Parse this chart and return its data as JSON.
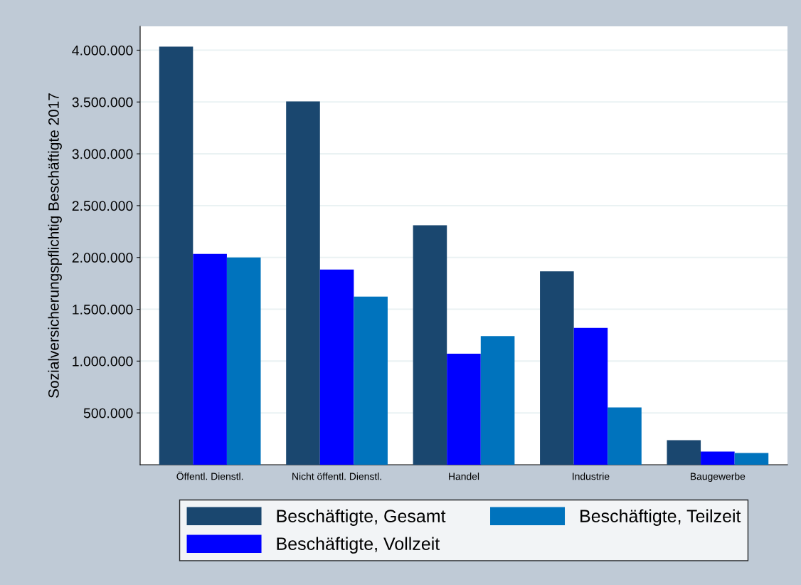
{
  "chart_data": {
    "type": "bar",
    "ylabel": "Sozialversicherungspflichtig Beschäftigte 2017",
    "categories": [
      "Öffentl. Dienstl.",
      "Nicht öffentl. Dienstl.",
      "Handel",
      "Industrie",
      "Baugewerbe"
    ],
    "series": [
      {
        "name": "Beschäftigte, Gesamt",
        "color": "#1a476f",
        "values": [
          4034000,
          3505000,
          2311000,
          1866000,
          237000
        ]
      },
      {
        "name": "Beschäftigte, Vollzeit",
        "color": "#0000ff",
        "values": [
          2034000,
          1884000,
          1071000,
          1320000,
          127000
        ]
      },
      {
        "name": "Beschäftigte, Teilzeit",
        "color": "#0073bd",
        "values": [
          2000000,
          1623000,
          1242000,
          552000,
          113000
        ]
      }
    ],
    "ylim": [
      0,
      4230000
    ],
    "yticks": [
      {
        "value": 500000,
        "label": "500.000"
      },
      {
        "value": 1000000,
        "label": "1.000.000"
      },
      {
        "value": 1500000,
        "label": "1.500.000"
      },
      {
        "value": 2000000,
        "label": "2.000.000"
      },
      {
        "value": 2500000,
        "label": "2.500.000"
      },
      {
        "value": 3000000,
        "label": "3.000.000"
      },
      {
        "value": 3500000,
        "label": "3.500.000"
      },
      {
        "value": 4000000,
        "label": "4.000.000"
      }
    ],
    "grid": "y",
    "legend": "bottom"
  }
}
